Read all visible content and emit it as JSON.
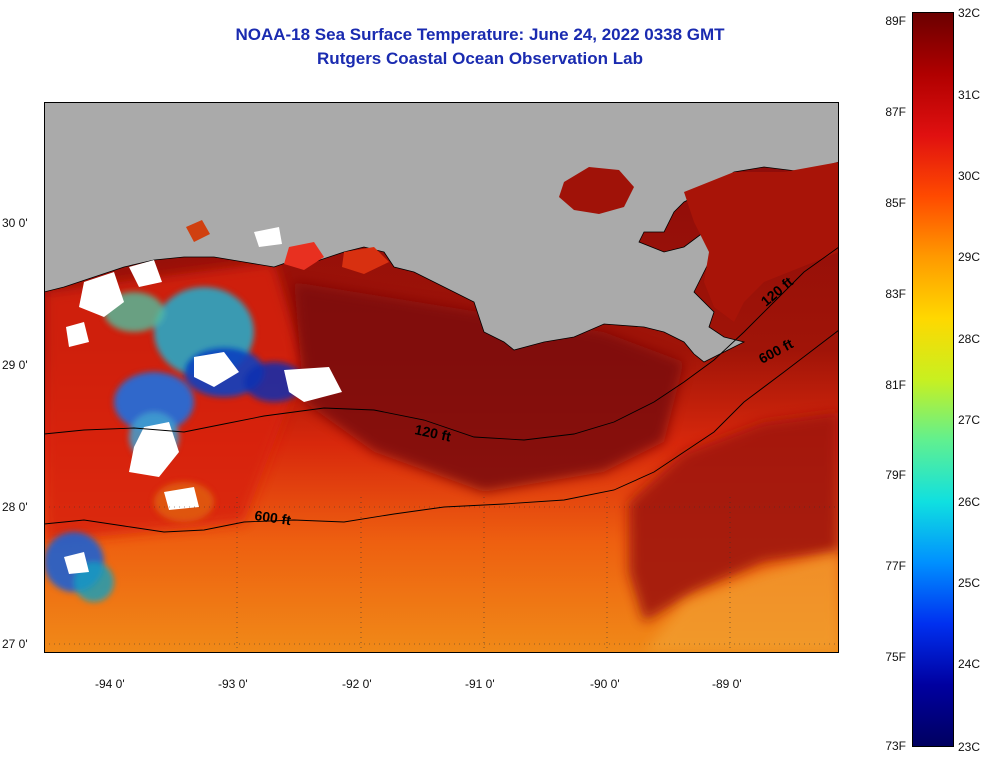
{
  "title": {
    "line1": "NOAA-18 Sea Surface Temperature:  June 24, 2022 0338 GMT",
    "line2": "Rutgers Coastal Ocean Observation Lab"
  },
  "map": {
    "longitude_labels": [
      "-94 0'",
      "-93 0'",
      "-92 0'",
      "-91 0'",
      "-90 0'",
      "-89 0'"
    ],
    "latitude_labels": [
      "30 0'",
      "29 0'",
      "28 0'",
      "27 0'"
    ],
    "contour_labels": [
      "120 ft",
      "600 ft",
      "120 ft",
      "600 ft"
    ],
    "colors": {
      "land": "#aaaaaa",
      "cloud": "#ffffff",
      "warm": "#8b0a0a",
      "hot": "#d21a0c",
      "mid": "#f07010"
    }
  },
  "colorbar": {
    "fahrenheit_labels": [
      "89F",
      "87F",
      "85F",
      "83F",
      "81F",
      "79F",
      "77F",
      "75F",
      "73F"
    ],
    "celsius_labels": [
      "32C",
      "31C",
      "30C",
      "29C",
      "28C",
      "27C",
      "26C",
      "25C",
      "24C",
      "23C"
    ],
    "gradient_top_to_bottom": [
      "#6b0000",
      "#b00000",
      "#e01010",
      "#ff4a00",
      "#ff9a00",
      "#ffd800",
      "#c8f020",
      "#60f090",
      "#10e0e0",
      "#0090ff",
      "#0030f0",
      "#0000a0",
      "#000060"
    ]
  }
}
